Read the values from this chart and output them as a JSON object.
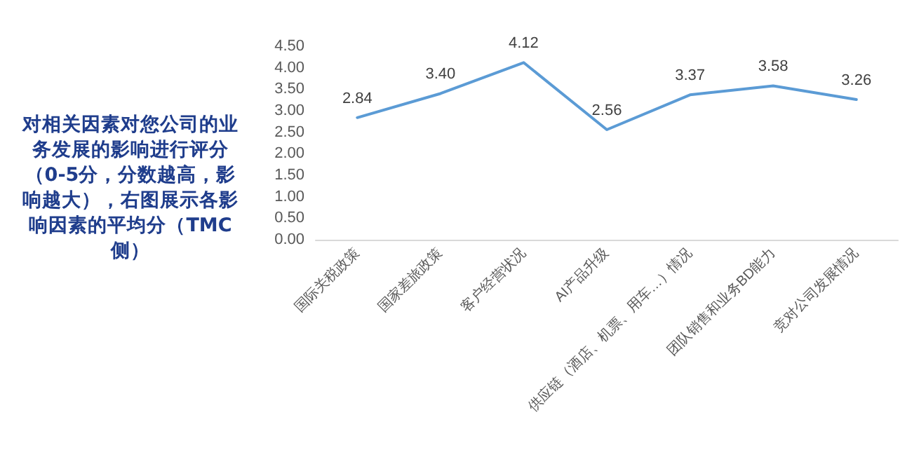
{
  "chart_data": {
    "type": "line",
    "title": "对相关因素对您公司的业务发展的影响进行评分（0-5分，分数越高，影响越大），右图展示各影响因素的平均分（TMC侧）",
    "categories": [
      "国际关税政策",
      "国家差旅政策",
      "客户经营状况",
      "AI产品升级",
      "供应链（酒店、机票、用车…）情况",
      "团队销售和业务BD能力",
      "竞对公司发展情况"
    ],
    "series": [
      {
        "color": "#5b9bd5",
        "values": [
          2.84,
          3.4,
          4.12,
          2.56,
          3.37,
          3.58,
          3.26
        ]
      }
    ],
    "ylim": [
      0,
      4.5
    ],
    "yticks": [
      {
        "value": 0,
        "label": "0.00"
      },
      {
        "value": 0.5,
        "label": "0.50"
      },
      {
        "value": 1,
        "label": "1.00"
      },
      {
        "value": 1.5,
        "label": "1.50"
      },
      {
        "value": 2,
        "label": "2.00"
      },
      {
        "value": 2.5,
        "label": "2.50"
      },
      {
        "value": 3,
        "label": "3.00"
      },
      {
        "value": 3.5,
        "label": "3.50"
      },
      {
        "value": 4,
        "label": "4.00"
      },
      {
        "value": 4.5,
        "label": "4.50"
      }
    ],
    "value_labels": [
      "2.84",
      "3.40",
      "4.12",
      "2.56",
      "3.37",
      "3.58",
      "3.26"
    ],
    "grid": false,
    "marker": "none",
    "line_style": "solid"
  }
}
